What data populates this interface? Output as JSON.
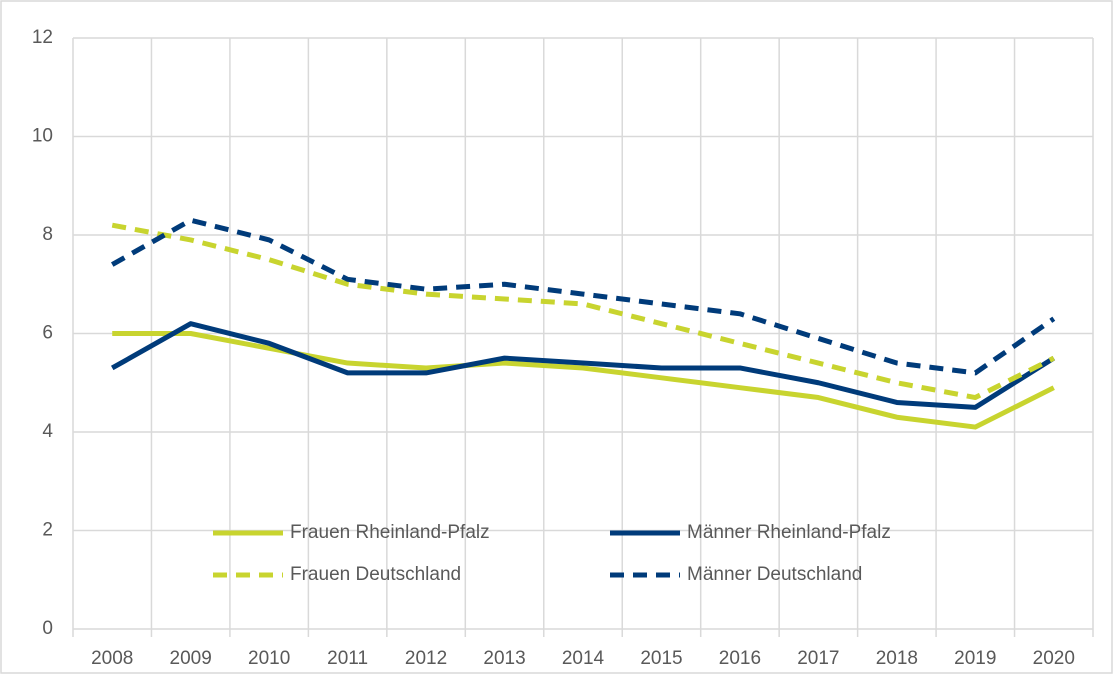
{
  "chart_data": {
    "type": "line",
    "categories": [
      "2008",
      "2009",
      "2010",
      "2011",
      "2012",
      "2013",
      "2014",
      "2015",
      "2016",
      "2017",
      "2018",
      "2019",
      "2020"
    ],
    "series": [
      {
        "name": "Frauen Rheinland-Pfalz",
        "color": "#c8d42f",
        "dashed": false,
        "values": [
          6.0,
          6.0,
          5.7,
          5.4,
          5.3,
          5.4,
          5.3,
          5.1,
          4.9,
          4.7,
          4.3,
          4.1,
          4.9
        ]
      },
      {
        "name": "Männer Rheinland-Pfalz",
        "color": "#003b7a",
        "dashed": false,
        "values": [
          5.3,
          6.2,
          5.8,
          5.2,
          5.2,
          5.5,
          5.4,
          5.3,
          5.3,
          5.0,
          4.6,
          4.5,
          5.5
        ]
      },
      {
        "name": "Frauen Deutschland",
        "color": "#c8d42f",
        "dashed": true,
        "values": [
          8.2,
          7.9,
          7.5,
          7.0,
          6.8,
          6.7,
          6.6,
          6.2,
          5.8,
          5.4,
          5.0,
          4.7,
          5.5
        ]
      },
      {
        "name": "Männer Deutschland",
        "color": "#003b7a",
        "dashed": true,
        "values": [
          7.4,
          8.3,
          7.9,
          7.1,
          6.9,
          7.0,
          6.8,
          6.6,
          6.4,
          5.9,
          5.4,
          5.2,
          6.3
        ]
      }
    ],
    "ylim": [
      0,
      12
    ],
    "yticks": [
      0,
      2,
      4,
      6,
      8,
      10,
      12
    ],
    "grid": true
  }
}
